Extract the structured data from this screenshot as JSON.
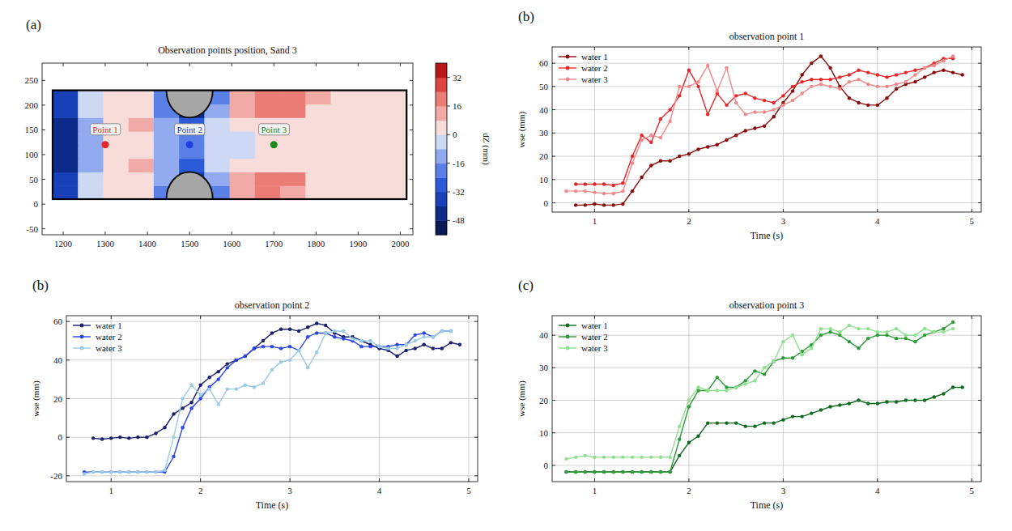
{
  "chart_data": [
    {
      "type": "heatmap",
      "panel_label": "(a)",
      "title": "Observation points position, Sand 3",
      "xlim": [
        1150,
        2030
      ],
      "xticks": [
        1200,
        1300,
        1400,
        1500,
        1600,
        1700,
        1800,
        1900,
        2000
      ],
      "ylim": [
        -62,
        285
      ],
      "yticks": [
        -50,
        0,
        50,
        100,
        150,
        200,
        250
      ],
      "x_edges": [
        1175,
        1235,
        1295,
        1355,
        1415,
        1475,
        1535,
        1595,
        1655,
        1715,
        1775,
        1835,
        1895,
        1955,
        2015
      ],
      "y_edges": [
        10,
        37.5,
        65,
        92.5,
        120,
        147.5,
        175,
        202.5,
        230
      ],
      "cells": [
        [
          -36,
          -4,
          4,
          4,
          -20,
          -48,
          -20,
          12,
          20,
          12,
          4,
          4,
          4,
          4
        ],
        [
          -40,
          -8,
          4,
          4,
          -16,
          -40,
          -12,
          12,
          20,
          16,
          4,
          4,
          4,
          4
        ],
        [
          -44,
          -12,
          4,
          12,
          -12,
          -28,
          -8,
          4,
          4,
          4,
          4,
          4,
          4,
          4
        ],
        [
          -44,
          -12,
          4,
          4,
          -12,
          -20,
          -4,
          -4,
          4,
          4,
          4,
          4,
          4,
          4
        ],
        [
          -44,
          -12,
          4,
          4,
          -12,
          -20,
          -4,
          -4,
          4,
          4,
          4,
          4,
          4,
          4
        ],
        [
          -44,
          -12,
          4,
          12,
          -12,
          -28,
          -8,
          4,
          4,
          4,
          4,
          4,
          4,
          4
        ],
        [
          -40,
          -8,
          4,
          4,
          -20,
          -44,
          -12,
          12,
          20,
          16,
          4,
          4,
          4,
          4
        ],
        [
          -36,
          -4,
          4,
          4,
          -24,
          -48,
          -20,
          12,
          20,
          20,
          12,
          4,
          4,
          4
        ]
      ],
      "obstacles": [
        {
          "x": 1500,
          "y": 230,
          "r": 55
        },
        {
          "x": 1500,
          "y": 10,
          "r": 55
        }
      ],
      "points": [
        {
          "label": "Point 1",
          "x": 1300,
          "y": 120,
          "color": "#e8262a"
        },
        {
          "label": "Point 2",
          "x": 1500,
          "y": 120,
          "color": "#1f3fe0"
        },
        {
          "label": "Point 3",
          "x": 1700,
          "y": 120,
          "color": "#1a8a1a"
        }
      ],
      "colorbar": {
        "range": [
          -56,
          40
        ],
        "ticks": [
          32,
          16,
          0,
          -16,
          -32,
          -48
        ],
        "label": "dZ (mm)"
      }
    },
    {
      "type": "line",
      "panel_label": "(b)",
      "title": "observation point 1",
      "x_label": "Time (s)",
      "y_label": "wse (mm)",
      "x": [
        0.7,
        0.8,
        0.9,
        1.0,
        1.1,
        1.2,
        1.3,
        1.4,
        1.5,
        1.6,
        1.7,
        1.8,
        1.9,
        2.0,
        2.1,
        2.2,
        2.3,
        2.4,
        2.5,
        2.6,
        2.7,
        2.8,
        2.9,
        3.0,
        3.1,
        3.2,
        3.3,
        3.4,
        3.5,
        3.6,
        3.7,
        3.8,
        3.9,
        4.0,
        4.1,
        4.2,
        4.3,
        4.4,
        4.5,
        4.6,
        4.7,
        4.8,
        4.9
      ],
      "xlim": [
        0.55,
        5.1
      ],
      "xticks": [
        1,
        2,
        3,
        4,
        5
      ],
      "ylim": [
        -4,
        67
      ],
      "yticks": [
        0,
        10,
        20,
        30,
        40,
        50,
        60
      ],
      "grid": true,
      "legend": "upper left",
      "marker": "circle",
      "series": [
        {
          "name": "water 1",
          "color": "#8b0a0a",
          "values": [
            null,
            -1,
            -1,
            -0.5,
            -1,
            -1,
            -0.5,
            5,
            11,
            16,
            18,
            18,
            20,
            21,
            23,
            24,
            25,
            27,
            29,
            31,
            32,
            33,
            37,
            43,
            48,
            55,
            60,
            63,
            58,
            50,
            45,
            43,
            42,
            42,
            45,
            49,
            51,
            52,
            54,
            56,
            57,
            56,
            55
          ]
        },
        {
          "name": "water 2",
          "color": "#e8262a",
          "values": [
            null,
            8,
            8,
            8,
            8,
            7.5,
            8.5,
            20,
            29,
            26,
            36,
            40,
            46,
            57,
            50,
            38,
            47,
            42,
            46,
            47,
            45,
            44,
            43,
            46,
            50,
            52,
            53,
            53,
            53,
            54,
            55,
            57,
            56,
            55,
            54,
            55,
            56,
            57,
            58,
            60,
            62,
            62,
            null
          ]
        },
        {
          "name": "water 3",
          "color": "#f08a8a",
          "values": [
            5,
            5,
            5,
            4.5,
            4,
            4,
            5,
            17,
            27,
            29,
            28,
            35,
            50,
            50,
            52,
            59,
            48,
            58,
            43,
            38,
            39,
            39,
            40,
            42,
            44,
            47,
            50,
            51,
            50,
            49,
            52,
            53,
            51,
            50,
            50,
            51,
            52,
            55,
            58,
            59,
            61,
            63,
            null
          ]
        }
      ]
    },
    {
      "type": "line",
      "panel_label": "(b)",
      "title": "observation point 2",
      "x_label": "Time (s)",
      "y_label": "wse (mm)",
      "x": [
        0.7,
        0.8,
        0.9,
        1.0,
        1.1,
        1.2,
        1.3,
        1.4,
        1.5,
        1.6,
        1.7,
        1.8,
        1.9,
        2.0,
        2.1,
        2.2,
        2.3,
        2.4,
        2.5,
        2.6,
        2.7,
        2.8,
        2.9,
        3.0,
        3.1,
        3.2,
        3.3,
        3.4,
        3.5,
        3.6,
        3.7,
        3.8,
        3.9,
        4.0,
        4.1,
        4.2,
        4.3,
        4.4,
        4.5,
        4.6,
        4.7,
        4.8,
        4.9
      ],
      "xlim": [
        0.5,
        5.1
      ],
      "xticks": [
        1,
        2,
        3,
        4,
        5
      ],
      "ylim": [
        -23,
        63
      ],
      "yticks": [
        -20,
        0,
        20,
        40,
        60
      ],
      "grid": true,
      "legend": "upper left",
      "marker": "circle",
      "series": [
        {
          "name": "water 1",
          "color": "#1a1f6e",
          "values": [
            null,
            -0.5,
            -1,
            -0.5,
            0,
            -0.5,
            0,
            0,
            2,
            5,
            12,
            15,
            18,
            27,
            31,
            34,
            38,
            40,
            42,
            46,
            50,
            54,
            56,
            56,
            55,
            57,
            59,
            58,
            54,
            52,
            52,
            50,
            48,
            46,
            45,
            42,
            45,
            46,
            48,
            46,
            46,
            49,
            48
          ]
        },
        {
          "name": "water 2",
          "color": "#2a45e8",
          "values": [
            -18,
            -18,
            -18,
            -18,
            -18,
            -18,
            -18,
            -18,
            -18,
            -18,
            -10,
            5,
            15,
            20,
            26,
            30,
            36,
            40,
            42,
            46,
            47,
            47,
            46,
            47,
            45,
            52,
            54,
            54,
            52,
            51,
            50,
            47,
            47,
            47,
            47,
            48,
            48,
            53,
            54,
            52,
            55,
            55,
            null
          ]
        },
        {
          "name": "water 3",
          "color": "#9ccbe6",
          "values": [
            -19,
            -18,
            -18,
            -18,
            -18,
            -18,
            -18,
            -18,
            -18,
            -17,
            0,
            20,
            27,
            22,
            25,
            17,
            25,
            25,
            27,
            26,
            28,
            35,
            39,
            40,
            45,
            36,
            44,
            54,
            55,
            55,
            51,
            50,
            50,
            47,
            46,
            46,
            48,
            50,
            52,
            52,
            55,
            55,
            null
          ]
        }
      ]
    },
    {
      "type": "line",
      "panel_label": "(c)",
      "title": "observation point 3",
      "x_label": "Time (s)",
      "y_label": "wse (mm)",
      "x": [
        0.7,
        0.8,
        0.9,
        1.0,
        1.1,
        1.2,
        1.3,
        1.4,
        1.5,
        1.6,
        1.7,
        1.8,
        1.9,
        2.0,
        2.1,
        2.2,
        2.3,
        2.4,
        2.5,
        2.6,
        2.7,
        2.8,
        2.9,
        3.0,
        3.1,
        3.2,
        3.3,
        3.4,
        3.5,
        3.6,
        3.7,
        3.8,
        3.9,
        4.0,
        4.1,
        4.2,
        4.3,
        4.4,
        4.5,
        4.6,
        4.7,
        4.8,
        4.9
      ],
      "xlim": [
        0.55,
        5.1
      ],
      "xticks": [
        1,
        2,
        3,
        4,
        5
      ],
      "ylim": [
        -5,
        46
      ],
      "yticks": [
        0,
        10,
        20,
        30,
        40
      ],
      "grid": true,
      "legend": "upper left",
      "marker": "circle",
      "series": [
        {
          "name": "water 1",
          "color": "#0f6b1e",
          "values": [
            -2,
            -2,
            -2,
            -2,
            -2,
            -2,
            -2,
            -2,
            -2,
            -2,
            -2,
            -2,
            3,
            7,
            9,
            13,
            13,
            13,
            13,
            12,
            12,
            13,
            13,
            14,
            15,
            15,
            16,
            17,
            18,
            18.5,
            19,
            20,
            19,
            19,
            19.5,
            19.5,
            20,
            20,
            20,
            21,
            22,
            24,
            24
          ]
        },
        {
          "name": "water 2",
          "color": "#2f9a3a",
          "values": [
            -2,
            -2,
            -2,
            -2,
            -2,
            -2,
            -2,
            -2,
            -2,
            -2,
            -2,
            -2,
            8,
            18,
            23,
            23,
            27,
            24,
            24,
            26,
            29,
            28,
            32,
            33,
            33,
            35,
            37,
            40,
            41,
            40,
            38,
            36,
            39,
            40,
            40,
            39,
            39,
            38,
            40,
            41,
            42,
            44,
            null
          ]
        },
        {
          "name": "water 3",
          "color": "#8fe08f",
          "values": [
            2,
            2.5,
            3,
            2.5,
            2.5,
            2.5,
            2.5,
            2.5,
            2.5,
            2.5,
            2.5,
            2.5,
            12,
            20,
            24,
            23,
            23,
            23,
            24,
            25,
            26,
            30,
            32,
            38,
            40,
            34,
            36,
            42,
            42,
            41,
            43,
            42,
            42,
            41,
            41,
            42,
            40,
            40,
            42,
            41,
            41,
            42,
            null
          ]
        }
      ]
    }
  ]
}
